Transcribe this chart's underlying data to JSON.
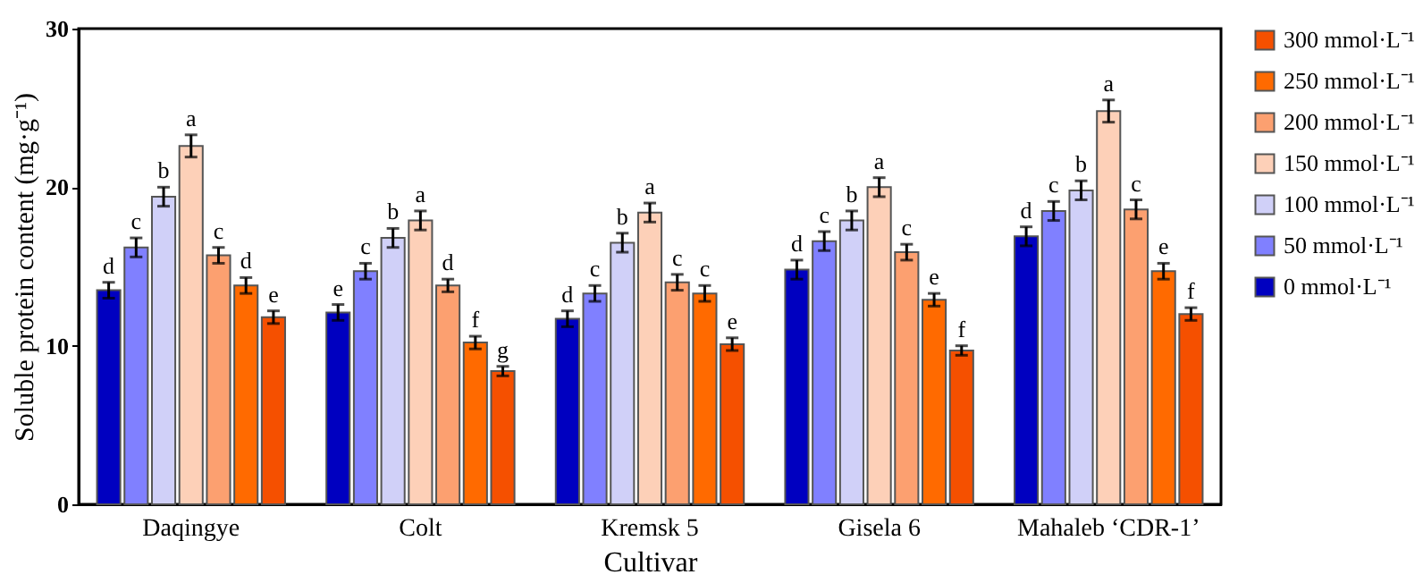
{
  "chart_data": {
    "type": "bar",
    "xlabel": "Cultivar",
    "ylabel": "Soluble protein content (mg·g⁻¹)",
    "categories": [
      "Daqingye",
      "Colt",
      "Kremsk 5",
      "Gisela 6",
      "Mahaleb ‘CDR-1’"
    ],
    "ylim": [
      0,
      30
    ],
    "yticks": [
      0,
      10,
      20,
      30
    ],
    "grid": false,
    "legend": "right",
    "series": [
      {
        "name": "0 mmol·L⁻¹",
        "color": "#0000c0",
        "values": [
          13.5,
          12.1,
          11.7,
          14.8,
          16.9
        ],
        "errors": [
          0.5,
          0.5,
          0.5,
          0.6,
          0.6
        ],
        "value_labels": [
          "d",
          "e",
          "d",
          "d",
          "d"
        ]
      },
      {
        "name": "50 mmol·L⁻¹",
        "color": "#8080ff",
        "values": [
          16.2,
          14.7,
          13.3,
          16.6,
          18.5
        ],
        "errors": [
          0.6,
          0.5,
          0.5,
          0.6,
          0.6
        ],
        "value_labels": [
          "c",
          "c",
          "c",
          "c",
          "c"
        ]
      },
      {
        "name": "100 mmol·L⁻¹",
        "color": "#d0d0f8",
        "values": [
          19.4,
          16.8,
          16.5,
          17.9,
          19.8
        ],
        "errors": [
          0.6,
          0.6,
          0.6,
          0.6,
          0.6
        ],
        "value_labels": [
          "b",
          "b",
          "b",
          "b",
          "b"
        ]
      },
      {
        "name": "150 mmol·L⁻¹",
        "color": "#fdd0b8",
        "values": [
          22.6,
          17.9,
          18.4,
          20.0,
          24.8
        ],
        "errors": [
          0.7,
          0.6,
          0.6,
          0.6,
          0.7
        ],
        "value_labels": [
          "a",
          "a",
          "a",
          "a",
          "a"
        ]
      },
      {
        "name": "200 mmol·L⁻¹",
        "color": "#fca070",
        "values": [
          15.7,
          13.8,
          14.0,
          15.9,
          18.6
        ],
        "errors": [
          0.5,
          0.4,
          0.5,
          0.5,
          0.6
        ],
        "value_labels": [
          "c",
          "d",
          "c",
          "c",
          "c"
        ]
      },
      {
        "name": "250 mmol·L⁻¹",
        "color": "#ff6a00",
        "values": [
          13.8,
          10.2,
          13.3,
          12.9,
          14.7
        ],
        "errors": [
          0.5,
          0.4,
          0.5,
          0.4,
          0.5
        ],
        "value_labels": [
          "d",
          "f",
          "c",
          "e",
          "e"
        ]
      },
      {
        "name": "300 mmol·L⁻¹",
        "color": "#f55000",
        "values": [
          11.8,
          8.4,
          10.1,
          9.7,
          12.0
        ],
        "errors": [
          0.4,
          0.3,
          0.4,
          0.3,
          0.4
        ],
        "value_labels": [
          "e",
          "g",
          "e",
          "f",
          "f"
        ]
      }
    ]
  }
}
